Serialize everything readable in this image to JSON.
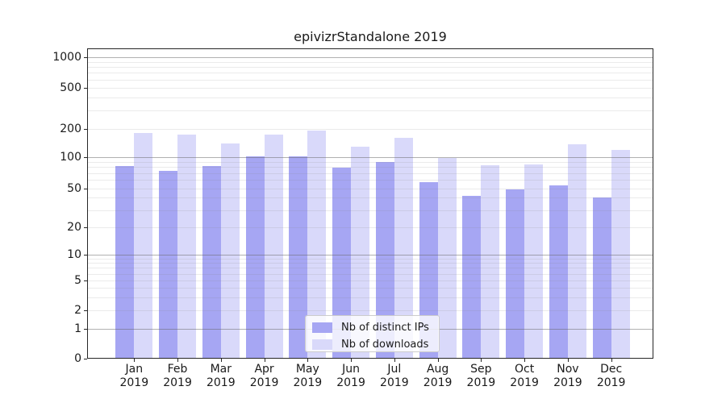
{
  "title": "epivizrStandalone 2019",
  "chart_data": {
    "type": "bar",
    "title": "epivizrStandalone 2019",
    "categories": [
      "Jan",
      "Feb",
      "Mar",
      "Apr",
      "May",
      "Jun",
      "Jul",
      "Aug",
      "Sep",
      "Oct",
      "Nov",
      "Dec"
    ],
    "year_label": "2019",
    "series": [
      {
        "name": "Nb of distinct IPs",
        "color": "#a6a6f3",
        "values": [
          82,
          74,
          82,
          102,
          101,
          79,
          89,
          57,
          42,
          49,
          53,
          40
        ]
      },
      {
        "name": "Nb of downloads",
        "color": "#d9d9fa",
        "values": [
          181,
          175,
          140,
          175,
          192,
          129,
          160,
          98,
          83,
          85,
          138,
          120
        ]
      }
    ],
    "y_axis": {
      "scale": "log-like",
      "ticks": [
        0,
        1,
        2,
        5,
        10,
        20,
        50,
        100,
        200,
        500,
        1000
      ],
      "major_gridlines": [
        1,
        10,
        100,
        1000
      ],
      "range": [
        0,
        1000
      ]
    },
    "legend": {
      "position": "inside-bottom-center"
    },
    "grid": "on"
  }
}
